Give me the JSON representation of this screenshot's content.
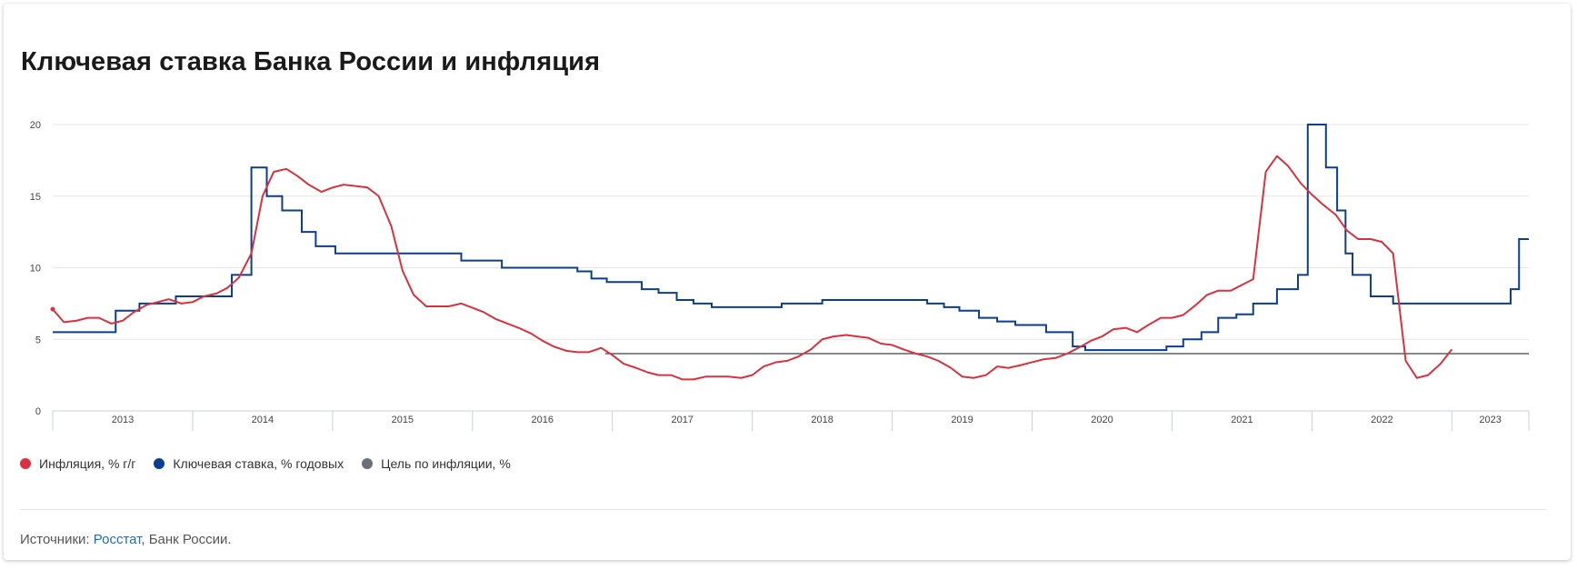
{
  "title": "Ключевая ставка Банка России и инфляция",
  "legend": [
    {
      "label": "Инфляция, % г/г",
      "color": "#d9323e"
    },
    {
      "label": "Ключевая ставка, % годовых",
      "color": "#0a3f8f"
    },
    {
      "label": "Цель по инфляции, %",
      "color": "#6b6f78"
    }
  ],
  "sources": {
    "prefix": "Источники: ",
    "link": "Росстат",
    "rest": ", Банк России."
  },
  "chart_data": {
    "type": "line",
    "yticks": [
      "0",
      "5",
      "10",
      "15",
      "20"
    ],
    "ylim": [
      0,
      20
    ],
    "xlim": [
      2013.0,
      2023.55
    ],
    "years": [
      "2013",
      "2014",
      "2015",
      "2016",
      "2017",
      "2018",
      "2019",
      "2020",
      "2021",
      "2022",
      "2023"
    ],
    "series": [
      {
        "name": "Инфляция, % г/г",
        "color": "#d9323e",
        "points": [
          [
            2013.0,
            7.1
          ],
          [
            2013.08,
            6.2
          ],
          [
            2013.17,
            6.3
          ],
          [
            2013.25,
            6.5
          ],
          [
            2013.33,
            6.5
          ],
          [
            2013.42,
            6.1
          ],
          [
            2013.5,
            6.3
          ],
          [
            2013.58,
            6.9
          ],
          [
            2013.67,
            7.4
          ],
          [
            2013.75,
            7.6
          ],
          [
            2013.83,
            7.8
          ],
          [
            2013.92,
            7.5
          ],
          [
            2014.0,
            7.6
          ],
          [
            2014.08,
            8.0
          ],
          [
            2014.17,
            8.2
          ],
          [
            2014.25,
            8.6
          ],
          [
            2014.33,
            9.3
          ],
          [
            2014.42,
            11.0
          ],
          [
            2014.5,
            15.0
          ],
          [
            2014.58,
            16.7
          ],
          [
            2014.67,
            16.9
          ],
          [
            2014.75,
            16.4
          ],
          [
            2014.83,
            15.8
          ],
          [
            2014.92,
            15.3
          ],
          [
            2015.0,
            15.6
          ],
          [
            2015.08,
            15.8
          ],
          [
            2015.17,
            15.7
          ],
          [
            2015.25,
            15.6
          ],
          [
            2015.33,
            15.0
          ],
          [
            2015.42,
            12.9
          ],
          [
            2015.5,
            9.8
          ],
          [
            2015.58,
            8.1
          ],
          [
            2015.67,
            7.3
          ],
          [
            2015.75,
            7.3
          ],
          [
            2015.83,
            7.3
          ],
          [
            2015.92,
            7.5
          ],
          [
            2016.0,
            7.2
          ],
          [
            2016.08,
            6.9
          ],
          [
            2016.17,
            6.4
          ],
          [
            2016.25,
            6.1
          ],
          [
            2016.33,
            5.8
          ],
          [
            2016.42,
            5.4
          ],
          [
            2016.5,
            4.9
          ],
          [
            2016.58,
            4.5
          ],
          [
            2016.67,
            4.2
          ],
          [
            2016.75,
            4.1
          ],
          [
            2016.83,
            4.1
          ],
          [
            2016.92,
            4.4
          ],
          [
            2017.0,
            3.9
          ],
          [
            2017.08,
            3.3
          ],
          [
            2017.17,
            3.0
          ],
          [
            2017.25,
            2.7
          ],
          [
            2017.33,
            2.5
          ],
          [
            2017.42,
            2.5
          ],
          [
            2017.5,
            2.2
          ],
          [
            2017.58,
            2.2
          ],
          [
            2017.67,
            2.4
          ],
          [
            2017.75,
            2.4
          ],
          [
            2017.83,
            2.4
          ],
          [
            2017.92,
            2.3
          ],
          [
            2018.0,
            2.5
          ],
          [
            2018.08,
            3.1
          ],
          [
            2018.17,
            3.4
          ],
          [
            2018.25,
            3.5
          ],
          [
            2018.33,
            3.8
          ],
          [
            2018.42,
            4.3
          ],
          [
            2018.5,
            5.0
          ],
          [
            2018.58,
            5.2
          ],
          [
            2018.67,
            5.3
          ],
          [
            2018.75,
            5.2
          ],
          [
            2018.83,
            5.1
          ],
          [
            2018.92,
            4.7
          ],
          [
            2019.0,
            4.6
          ],
          [
            2019.08,
            4.3
          ],
          [
            2019.17,
            4.0
          ],
          [
            2019.25,
            3.8
          ],
          [
            2019.33,
            3.5
          ],
          [
            2019.42,
            3.0
          ],
          [
            2019.5,
            2.4
          ],
          [
            2019.58,
            2.3
          ],
          [
            2019.67,
            2.5
          ],
          [
            2019.75,
            3.1
          ],
          [
            2019.83,
            3.0
          ],
          [
            2019.92,
            3.2
          ],
          [
            2020.0,
            3.4
          ],
          [
            2020.08,
            3.6
          ],
          [
            2020.17,
            3.7
          ],
          [
            2020.25,
            4.0
          ],
          [
            2020.33,
            4.4
          ],
          [
            2020.42,
            4.9
          ],
          [
            2020.5,
            5.2
          ],
          [
            2020.58,
            5.7
          ],
          [
            2020.67,
            5.8
          ],
          [
            2020.75,
            5.5
          ],
          [
            2020.83,
            6.0
          ],
          [
            2020.92,
            6.5
          ],
          [
            2021.0,
            6.5
          ],
          [
            2021.08,
            6.7
          ],
          [
            2021.17,
            7.4
          ],
          [
            2021.25,
            8.1
          ],
          [
            2021.33,
            8.4
          ],
          [
            2021.42,
            8.4
          ],
          [
            2021.5,
            8.8
          ],
          [
            2021.58,
            9.2
          ],
          [
            2021.67,
            16.7
          ],
          [
            2021.75,
            17.8
          ],
          [
            2021.83,
            17.1
          ],
          [
            2021.92,
            15.9
          ],
          [
            2022.0,
            15.1
          ],
          [
            2022.08,
            14.4
          ],
          [
            2022.17,
            13.7
          ],
          [
            2022.25,
            12.6
          ],
          [
            2022.33,
            12.0
          ],
          [
            2022.42,
            12.0
          ],
          [
            2022.5,
            11.8
          ],
          [
            2022.58,
            11.0
          ],
          [
            2022.67,
            3.5
          ],
          [
            2022.75,
            2.3
          ],
          [
            2022.83,
            2.5
          ],
          [
            2022.92,
            3.3
          ],
          [
            2023.0,
            4.3
          ]
        ]
      },
      {
        "name": "Ключевая ставка, % годовых",
        "color": "#0a3f8f",
        "steps": [
          [
            2013.0,
            5.5
          ],
          [
            2013.45,
            7.0
          ],
          [
            2013.62,
            7.5
          ],
          [
            2013.88,
            8.0
          ],
          [
            2014.28,
            9.5
          ],
          [
            2014.42,
            17.0
          ],
          [
            2014.53,
            15.0
          ],
          [
            2014.64,
            14.0
          ],
          [
            2014.78,
            12.5
          ],
          [
            2014.88,
            11.5
          ],
          [
            2015.02,
            11.0
          ],
          [
            2015.92,
            10.5
          ],
          [
            2016.21,
            10.0
          ],
          [
            2016.75,
            9.75
          ],
          [
            2016.85,
            9.25
          ],
          [
            2016.96,
            9.0
          ],
          [
            2017.21,
            8.5
          ],
          [
            2017.33,
            8.25
          ],
          [
            2017.46,
            7.75
          ],
          [
            2017.58,
            7.5
          ],
          [
            2017.71,
            7.25
          ],
          [
            2018.21,
            7.5
          ],
          [
            2018.5,
            7.75
          ],
          [
            2019.25,
            7.5
          ],
          [
            2019.37,
            7.25
          ],
          [
            2019.48,
            7.0
          ],
          [
            2019.62,
            6.5
          ],
          [
            2019.75,
            6.25
          ],
          [
            2019.88,
            6.0
          ],
          [
            2020.1,
            5.5
          ],
          [
            2020.29,
            4.5
          ],
          [
            2020.38,
            4.25
          ],
          [
            2020.96,
            4.5
          ],
          [
            2021.08,
            5.0
          ],
          [
            2021.21,
            5.5
          ],
          [
            2021.33,
            6.5
          ],
          [
            2021.46,
            6.75
          ],
          [
            2021.58,
            7.5
          ],
          [
            2021.75,
            8.5
          ],
          [
            2021.9,
            9.5
          ],
          [
            2021.97,
            20.0
          ],
          [
            2022.1,
            17.0
          ],
          [
            2022.18,
            14.0
          ],
          [
            2022.24,
            11.0
          ],
          [
            2022.29,
            9.5
          ],
          [
            2022.42,
            8.0
          ],
          [
            2022.58,
            7.5
          ],
          [
            2023.42,
            8.5
          ],
          [
            2023.48,
            12.0
          ],
          [
            2023.55,
            12.0
          ]
        ]
      },
      {
        "name": "Цель по инфляции, %",
        "color": "#6b6f78",
        "points": [
          [
            2016.95,
            4.0
          ],
          [
            2023.55,
            4.0
          ]
        ]
      }
    ]
  }
}
